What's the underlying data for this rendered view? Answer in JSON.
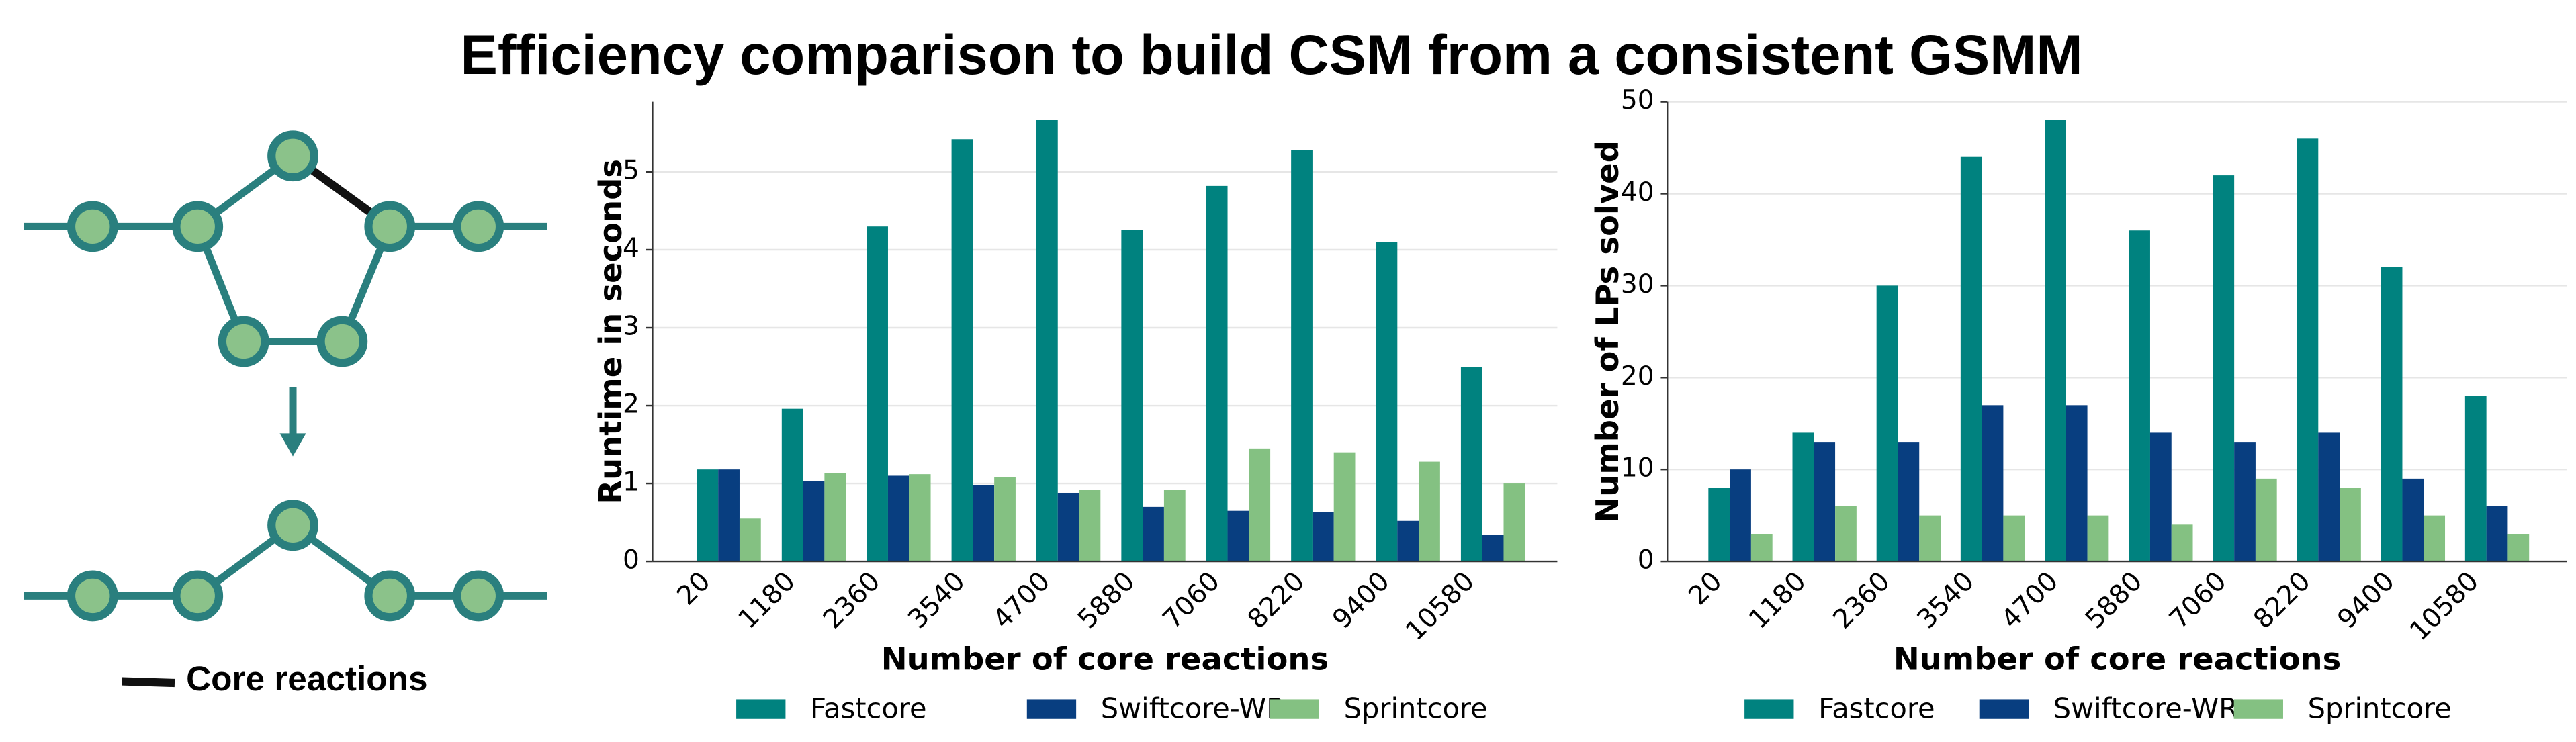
{
  "title": "Efficiency comparison to build CSM from a consistent GSMM",
  "diagram": {
    "legend": "Core reactions"
  },
  "chart_data": [
    {
      "type": "bar",
      "ylabel": "Runtime in seconds",
      "xlabel": "Number of core reactions",
      "categories": [
        "20",
        "1180",
        "2360",
        "3540",
        "4700",
        "5880",
        "7060",
        "8220",
        "9400",
        "10580"
      ],
      "series": [
        {
          "name": "Fastcore",
          "color": "#00827f",
          "values": [
            1.18,
            1.96,
            4.3,
            5.42,
            5.67,
            4.25,
            4.82,
            5.28,
            4.1,
            2.5
          ]
        },
        {
          "name": "Swiftcore-WR",
          "color": "#083e80",
          "values": [
            1.18,
            1.03,
            1.1,
            0.98,
            0.88,
            0.7,
            0.65,
            0.63,
            0.52,
            0.34
          ]
        },
        {
          "name": "Sprintcore",
          "color": "#84c182",
          "values": [
            0.55,
            1.13,
            1.12,
            1.08,
            0.92,
            0.92,
            1.45,
            1.4,
            1.28,
            1.0
          ]
        }
      ],
      "ylim": [
        0,
        5.9
      ],
      "yticks": [
        0,
        1,
        2,
        3,
        4,
        5
      ],
      "grid": true,
      "legend": "bottom"
    },
    {
      "type": "bar",
      "ylabel": "Number of LPs solved",
      "xlabel": "Number of core reactions",
      "categories": [
        "20",
        "1180",
        "2360",
        "3540",
        "4700",
        "5880",
        "7060",
        "8220",
        "9400",
        "10580"
      ],
      "series": [
        {
          "name": "Fastcore",
          "color": "#00827f",
          "values": [
            8,
            14,
            30,
            44,
            48,
            36,
            42,
            46,
            32,
            18
          ]
        },
        {
          "name": "Swiftcore-WR",
          "color": "#083e80",
          "values": [
            10,
            13,
            13,
            17,
            17,
            14,
            13,
            14,
            9,
            6
          ]
        },
        {
          "name": "Sprintcore",
          "color": "#84c182",
          "values": [
            3,
            6,
            5,
            5,
            5,
            4,
            9,
            8,
            5,
            3
          ]
        }
      ],
      "ylim": [
        0,
        50
      ],
      "yticks": [
        0,
        10,
        20,
        30,
        40,
        50
      ],
      "grid": true,
      "legend": "bottom"
    }
  ]
}
